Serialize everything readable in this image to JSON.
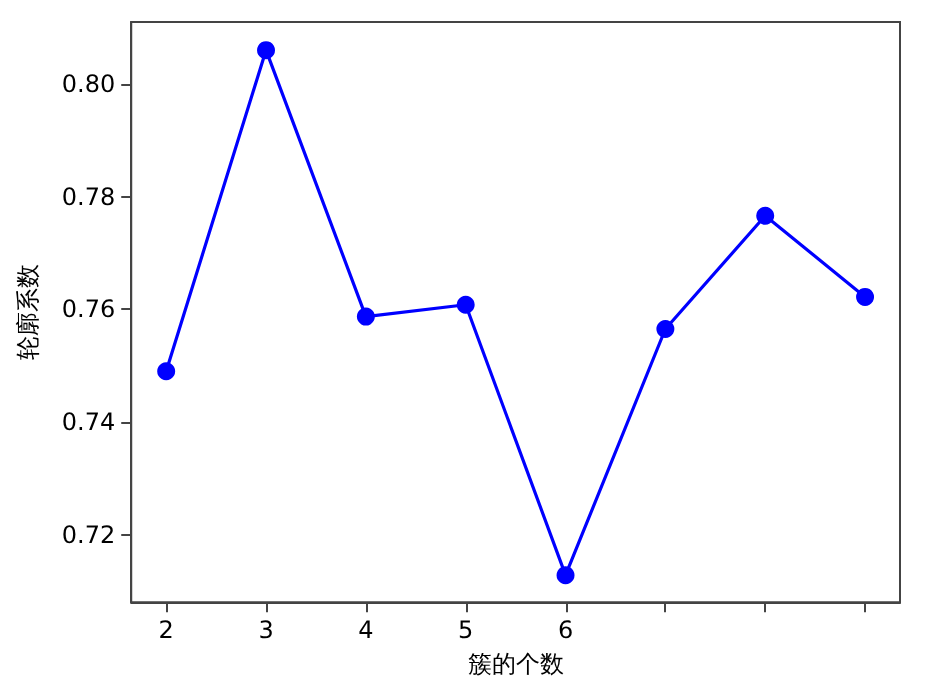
{
  "chart_data": {
    "type": "line",
    "xlabel": "簇的个数",
    "ylabel": "轮廓系数",
    "x": [
      2,
      3,
      4,
      5,
      6,
      7,
      8,
      9
    ],
    "series": [
      {
        "color": "#0000ff",
        "values": [
          0.749,
          0.806,
          0.7587,
          0.7608,
          0.7128,
          0.7565,
          0.7766,
          0.7622
        ]
      }
    ],
    "xlim": [
      1.65,
      9.35
    ],
    "xticks": [
      2,
      3,
      4,
      5,
      6,
      {
        "value": 7,
        "label": null
      },
      {
        "value": 8,
        "label": null
      },
      {
        "value": 9,
        "label": null
      }
    ],
    "ylim": [
      0.708,
      0.811
    ],
    "yticks": [
      {
        "value": 0.72,
        "label": "0.72"
      },
      {
        "value": 0.74,
        "label": "0.74"
      },
      {
        "value": 0.76,
        "label": "0.76"
      },
      {
        "value": 0.78,
        "label": "0.78"
      },
      {
        "value": 0.8,
        "label": "0.80"
      }
    ],
    "grid": false,
    "marker": "circle",
    "line_style": "solid"
  }
}
